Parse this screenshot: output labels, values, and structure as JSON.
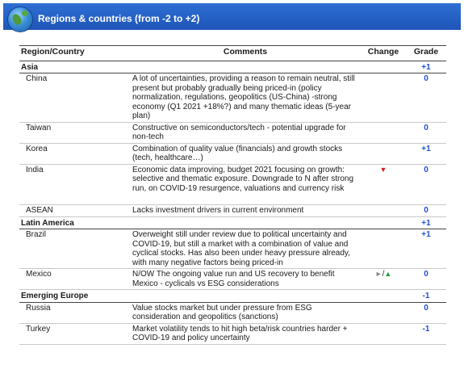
{
  "header": {
    "title": "Regions & countries (from -2 to +2)"
  },
  "columns": {
    "region": "Region/Country",
    "comments": "Comments",
    "change": "Change",
    "grade": "Grade"
  },
  "rows": [
    {
      "type": "region",
      "name": "Asia",
      "grade": "+1"
    },
    {
      "type": "country",
      "name": "China",
      "comment": "A lot of uncertainties, providing a reason to remain neutral, still present but probably gradually being priced-in (policy normalization, regulations, geopolitics (US-China) -strong economy (Q1 2021 +18%?) and many thematic ideas (5-year plan)",
      "grade": "0"
    },
    {
      "type": "country",
      "name": "Taiwan",
      "comment": "Constructive on semiconductors/tech - potential upgrade for non-tech",
      "grade": "0"
    },
    {
      "type": "country",
      "name": "Korea",
      "comment": "Combination of quality value (financials) and growth stocks (tech, healthcare…)",
      "grade": "+1"
    },
    {
      "type": "country",
      "name": "India",
      "comment": "Economic data improving, budget 2021 focusing on growth: selective and thematic exposure. Downgrade to N after strong run, on COVID-19 resurgence, valuations and currency risk",
      "change": "down-arrow",
      "grade": "0"
    },
    {
      "type": "country",
      "name": "ASEAN",
      "comment": "Lacks investment drivers in current environment",
      "grade": "0"
    },
    {
      "type": "region",
      "name": "Latin America",
      "grade": "+1"
    },
    {
      "type": "country",
      "name": "Brazil",
      "comment": "Overweight still under review due to political uncertainty and COVID-19, but still a market with a combination of value and cyclical stocks. Has also been under heavy pressure already, with many negative factors being priced-in",
      "grade": "+1"
    },
    {
      "type": "country",
      "name": "Mexico",
      "comment": "N/OW The ongoing value run and US recovery to benefit Mexico - cyclicals vs ESG considerations",
      "change": "neutral-up",
      "grade": "0"
    },
    {
      "type": "region",
      "name": "Emerging Europe",
      "grade": "-1"
    },
    {
      "type": "country",
      "name": "Russia",
      "comment": "Value stocks market but under pressure from ESG consideration and geopolitics (sanctions)",
      "grade": "0"
    },
    {
      "type": "country",
      "name": "Turkey",
      "comment": "Market volatility tends to hit high beta/risk countries harder + COVID-19 and policy uncertainty",
      "grade": "-1"
    }
  ],
  "change_symbols": {
    "down": "▼",
    "neutral": "►",
    "slash": "/",
    "up": "▲"
  },
  "colors": {
    "header_bg": "#2462c8",
    "grade": "#1f4fd1",
    "down": "#d42020",
    "up": "#1f9a3a"
  }
}
